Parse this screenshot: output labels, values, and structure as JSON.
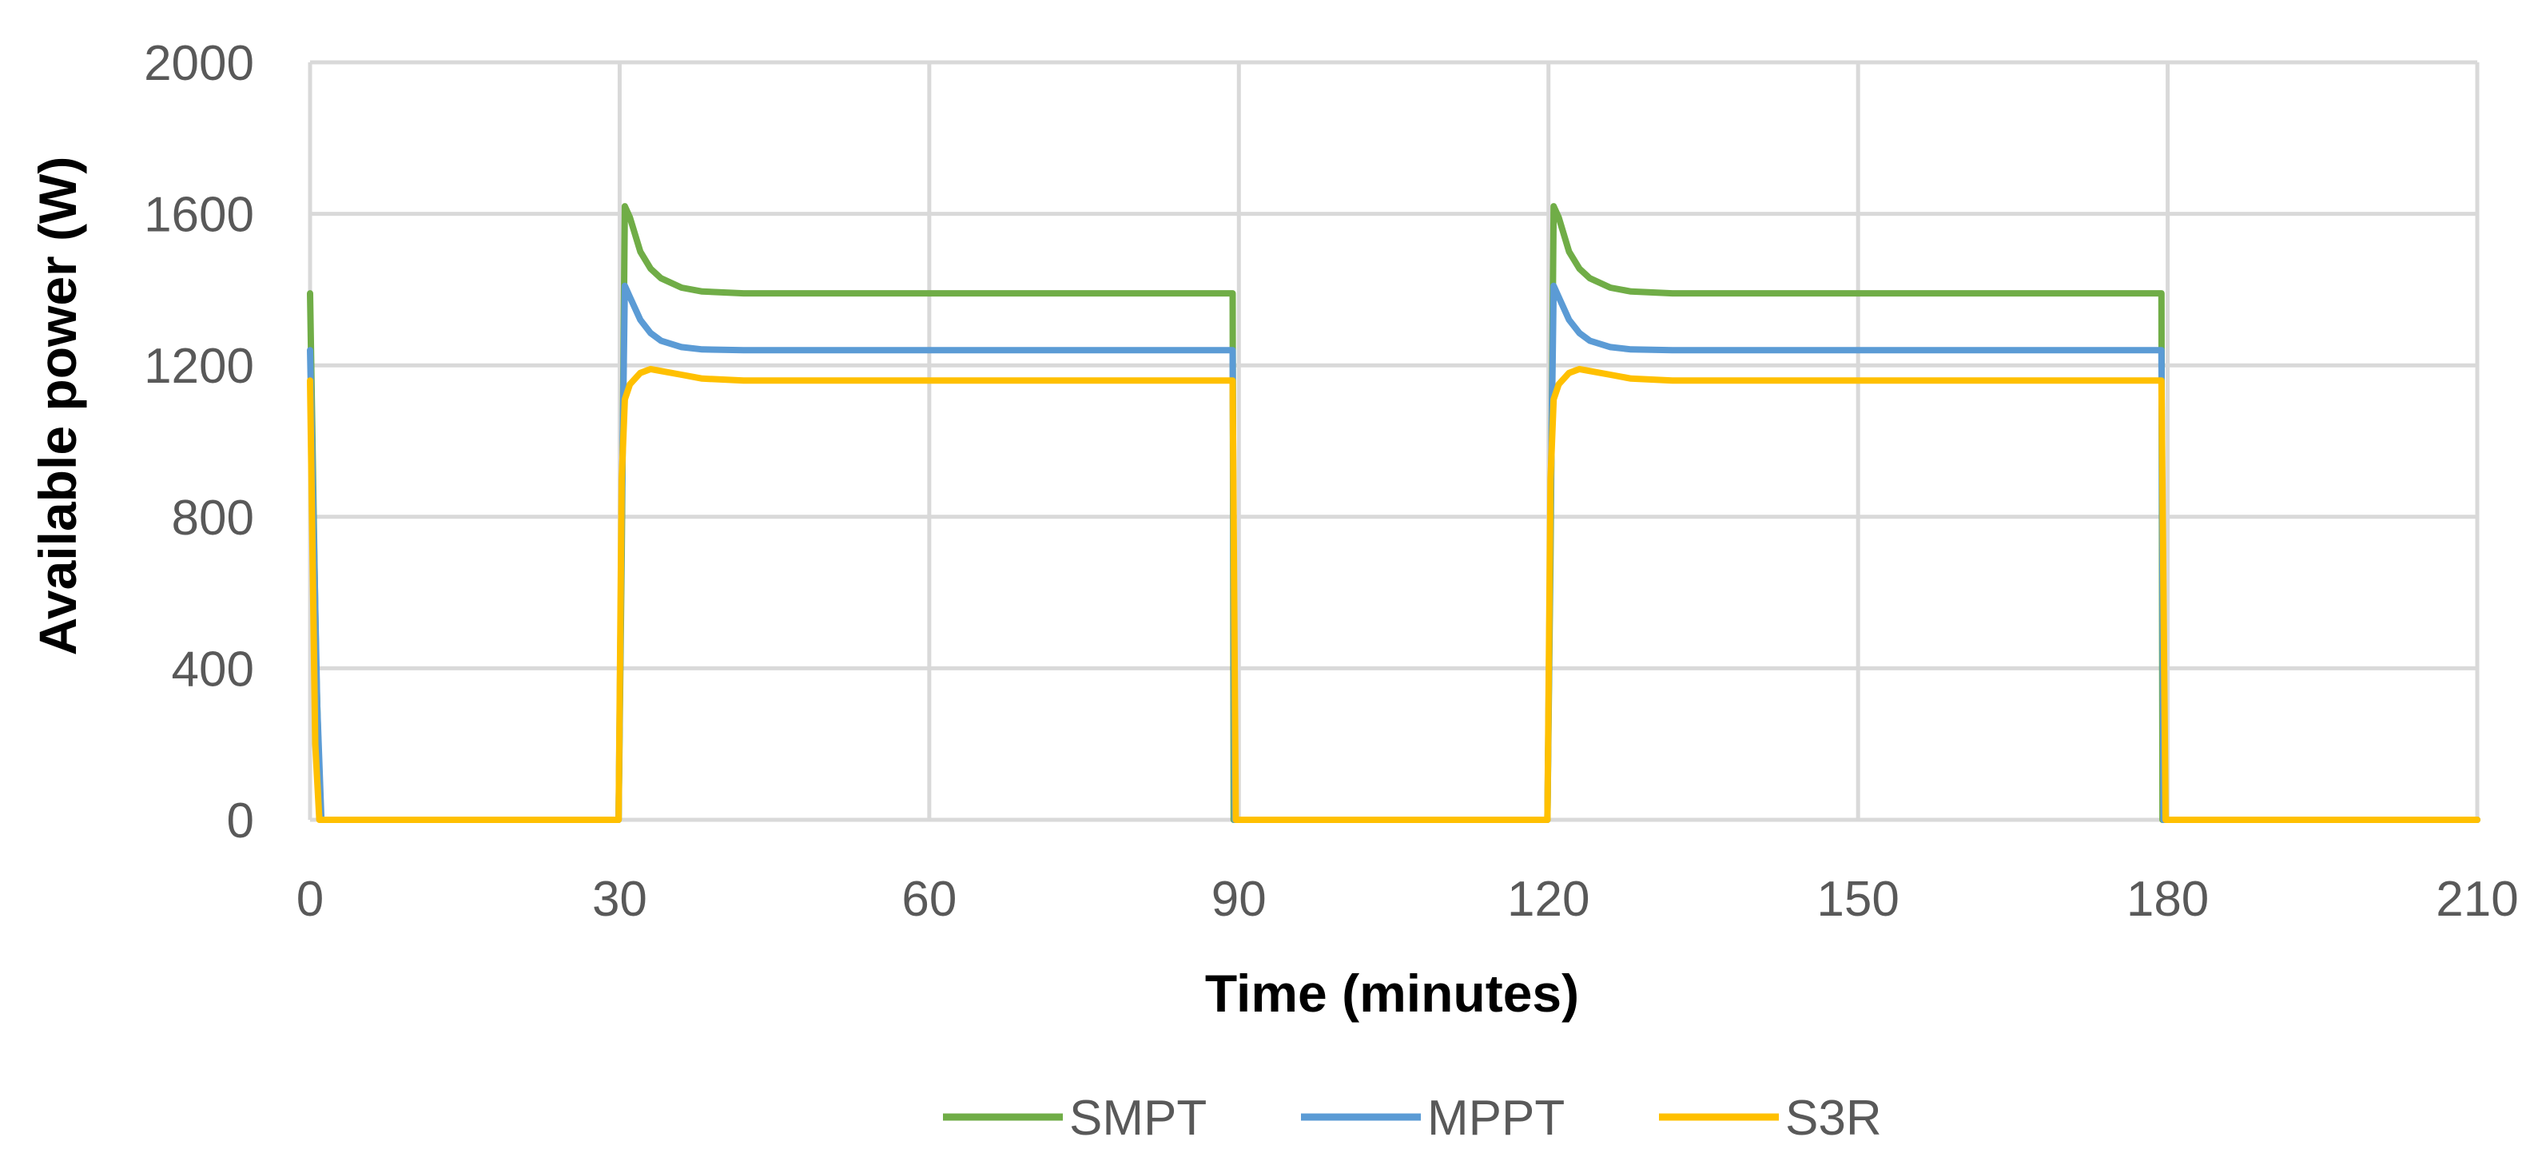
{
  "chart_data": {
    "type": "line",
    "title": "",
    "xlabel": "Time (minutes)",
    "ylabel": "Available power (W)",
    "xlim": [
      0,
      210
    ],
    "ylim": [
      0,
      2000
    ],
    "x_ticks": [
      0,
      30,
      60,
      90,
      120,
      150,
      180,
      210
    ],
    "y_ticks": [
      0,
      400,
      800,
      1200,
      1600,
      2000
    ],
    "grid": true,
    "legend_position": "bottom",
    "series": [
      {
        "name": "SMPT",
        "color": "#70ad47",
        "x": [
          0,
          0.6,
          1.0,
          29.9,
          30.2,
          30.5,
          31.0,
          32.0,
          33.0,
          34.0,
          36.0,
          38.0,
          42.0,
          50.0,
          70.0,
          89.4,
          89.5,
          90.0,
          119.9,
          120.2,
          120.5,
          121.0,
          122.0,
          123.0,
          124.0,
          126.0,
          128.0,
          132.0,
          140.0,
          160.0,
          179.4,
          179.5,
          180.0,
          210.0
        ],
        "y": [
          1390,
          400,
          0,
          0,
          700,
          1620,
          1590,
          1500,
          1455,
          1430,
          1405,
          1395,
          1390,
          1390,
          1390,
          1390,
          0,
          0,
          0,
          700,
          1620,
          1590,
          1500,
          1455,
          1430,
          1405,
          1395,
          1390,
          1390,
          1390,
          1390,
          0,
          0,
          0
        ]
      },
      {
        "name": "MPPT",
        "color": "#5b9bd5",
        "x": [
          0,
          0.7,
          1.1,
          29.9,
          30.2,
          30.5,
          31.0,
          32.0,
          33.0,
          34.0,
          36.0,
          38.0,
          42.0,
          50.0,
          70.0,
          89.4,
          89.6,
          90.0,
          119.9,
          120.2,
          120.5,
          121.0,
          122.0,
          123.0,
          124.0,
          126.0,
          128.0,
          132.0,
          140.0,
          160.0,
          179.4,
          179.6,
          180.0,
          210.0
        ],
        "y": [
          1240,
          300,
          0,
          0,
          800,
          1410,
          1380,
          1320,
          1285,
          1265,
          1248,
          1242,
          1240,
          1240,
          1240,
          1240,
          0,
          0,
          0,
          800,
          1410,
          1380,
          1320,
          1285,
          1265,
          1248,
          1242,
          1240,
          1240,
          1240,
          1240,
          0,
          0,
          0
        ]
      },
      {
        "name": "S3R",
        "color": "#ffc000",
        "x": [
          0,
          0.5,
          0.9,
          29.9,
          30.2,
          30.5,
          31.0,
          32.0,
          33.0,
          34.0,
          36.0,
          38.0,
          42.0,
          50.0,
          70.0,
          89.4,
          89.7,
          90.0,
          119.9,
          120.2,
          120.5,
          121.0,
          122.0,
          123.0,
          124.0,
          126.0,
          128.0,
          132.0,
          140.0,
          160.0,
          179.4,
          179.8,
          180.0,
          210.0
        ],
        "y": [
          1160,
          200,
          0,
          0,
          900,
          1110,
          1150,
          1180,
          1190,
          1185,
          1175,
          1165,
          1160,
          1160,
          1160,
          1160,
          0,
          0,
          0,
          900,
          1110,
          1150,
          1180,
          1190,
          1185,
          1175,
          1165,
          1160,
          1160,
          1160,
          1160,
          0,
          0,
          0
        ]
      }
    ]
  }
}
